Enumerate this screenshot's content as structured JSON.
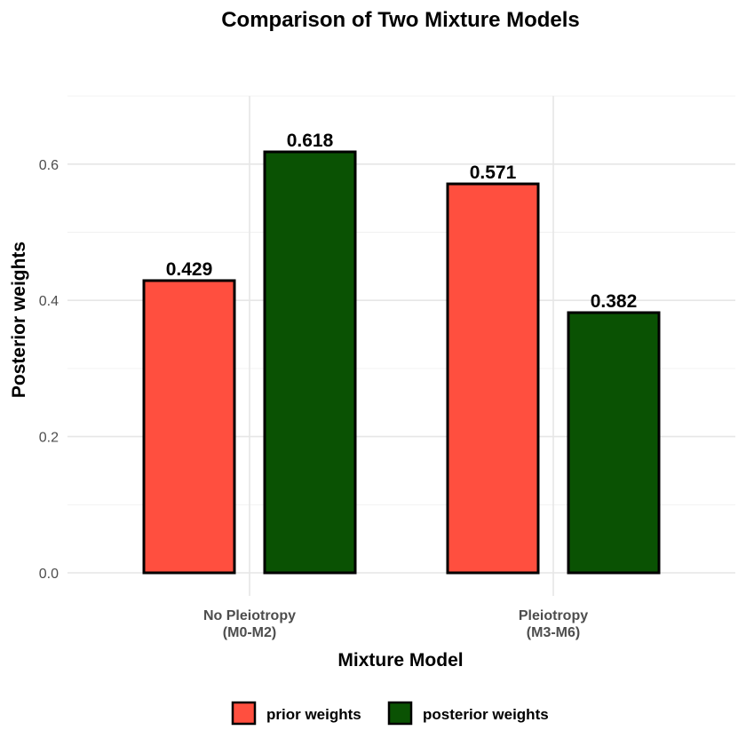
{
  "chart_data": {
    "type": "bar",
    "title": "Comparison of Two Mixture Models",
    "xlabel": "Mixture Model",
    "ylabel": "Posterior weights",
    "categories": [
      [
        "No Pleiotropy",
        "(M0-M2)"
      ],
      [
        "Pleiotropy",
        "(M3-M6)"
      ]
    ],
    "series": [
      {
        "name": "prior weights",
        "color": "#ff4f3f",
        "values": [
          0.429,
          0.571
        ],
        "labels": [
          "0.429",
          "0.571"
        ]
      },
      {
        "name": "posterior weights",
        "color": "#0a5203",
        "values": [
          0.618,
          0.382
        ],
        "labels": [
          "0.618",
          "0.382"
        ]
      }
    ],
    "ylim": [
      0,
      0.7
    ],
    "yticks": [
      0.0,
      0.2,
      0.4,
      0.6
    ],
    "ytick_labels": [
      "0.0",
      "0.2",
      "0.4",
      "0.6"
    ],
    "grid": true,
    "legend_position": "bottom"
  }
}
